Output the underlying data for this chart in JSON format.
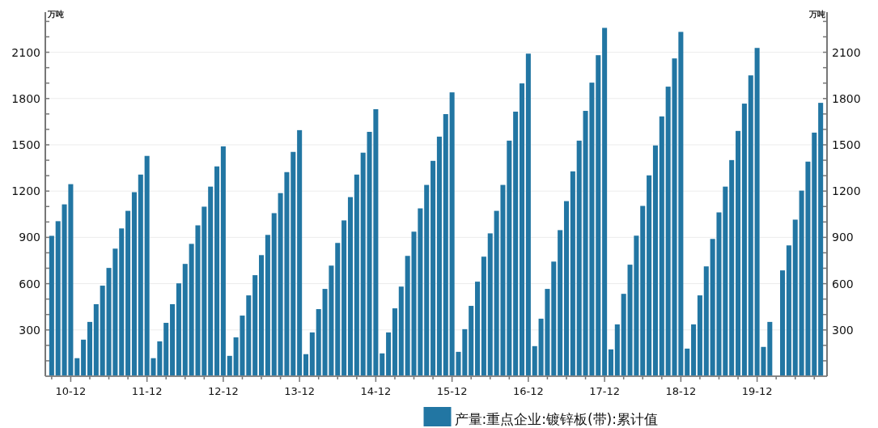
{
  "chart_data": {
    "type": "bar",
    "ylabel": "万吨",
    "y2label": "万吨",
    "categories": [
      null,
      null,
      null,
      "10-12",
      null,
      null,
      null,
      null,
      null,
      null,
      null,
      null,
      null,
      null,
      null,
      "11-12",
      null,
      null,
      null,
      null,
      null,
      null,
      null,
      null,
      null,
      null,
      null,
      "12-12",
      null,
      null,
      null,
      null,
      null,
      null,
      null,
      null,
      null,
      null,
      null,
      "13-12",
      null,
      null,
      null,
      null,
      null,
      null,
      null,
      null,
      null,
      null,
      null,
      "14-12",
      null,
      null,
      null,
      null,
      null,
      null,
      null,
      null,
      null,
      null,
      null,
      "15-12",
      null,
      null,
      null,
      null,
      null,
      null,
      null,
      null,
      null,
      null,
      null,
      "16-12",
      null,
      null,
      null,
      null,
      null,
      null,
      null,
      null,
      null,
      null,
      null,
      "17-12",
      null,
      null,
      null,
      null,
      null,
      null,
      null,
      null,
      null,
      null,
      null,
      "18-12",
      null,
      null,
      null,
      null,
      null,
      null,
      null,
      null,
      null,
      null,
      null,
      "19-12",
      null,
      null,
      null,
      null,
      null,
      null,
      null,
      null,
      null,
      null
    ],
    "series": [
      {
        "name": "产量:重点企业:镀锌板(带):累计值",
        "color": "#2276a3",
        "values": [
          910,
          1005,
          1114,
          1245,
          117,
          237,
          352,
          467,
          587,
          702,
          827,
          958,
          1072,
          1193,
          1307,
          1428,
          117,
          226,
          346,
          467,
          602,
          728,
          858,
          978,
          1099,
          1229,
          1360,
          1490,
          132,
          252,
          393,
          524,
          655,
          785,
          916,
          1057,
          1187,
          1323,
          1454,
          1595,
          143,
          284,
          435,
          566,
          717,
          864,
          1010,
          1161,
          1307,
          1449,
          1584,
          1731,
          148,
          284,
          440,
          581,
          780,
          937,
          1088,
          1240,
          1396,
          1553,
          1699,
          1840,
          158,
          305,
          456,
          613,
          775,
          926,
          1072,
          1240,
          1527,
          1715,
          1898,
          2091,
          195,
          373,
          566,
          743,
          947,
          1135,
          1328,
          1527,
          1720,
          1903,
          2081,
          2258,
          174,
          336,
          534,
          723,
          911,
          1104,
          1302,
          1496,
          1684,
          1877,
          2060,
          2232,
          179,
          336,
          524,
          712,
          890,
          1062,
          1229,
          1401,
          1590,
          1767,
          1950,
          2128,
          190,
          352,
          null,
          686,
          848,
          1015,
          1203,
          1391,
          1579,
          1772
        ]
      }
    ],
    "ylim": [
      0,
      2360
    ],
    "yticks": [
      {
        "value": 100,
        "label": null
      },
      {
        "value": 200,
        "label": null
      },
      300,
      {
        "value": 400,
        "label": null
      },
      {
        "value": 500,
        "label": null
      },
      600,
      {
        "value": 700,
        "label": null
      },
      {
        "value": 800,
        "label": null
      },
      900,
      {
        "value": 1000,
        "label": null
      },
      {
        "value": 1100,
        "label": null
      },
      1200,
      {
        "value": 1300,
        "label": null
      },
      {
        "value": 1400,
        "label": null
      },
      1500,
      {
        "value": 1600,
        "label": null
      },
      {
        "value": 1700,
        "label": null
      },
      1800,
      {
        "value": 1900,
        "label": null
      },
      {
        "value": 2000,
        "label": null
      },
      2100,
      {
        "value": 2200,
        "label": null
      },
      {
        "value": 2300,
        "label": null
      }
    ],
    "y2lim": [
      0,
      2360
    ],
    "y2ticks": [
      {
        "value": 100,
        "label": null
      },
      {
        "value": 200,
        "label": null
      },
      300,
      {
        "value": 400,
        "label": null
      },
      {
        "value": 500,
        "label": null
      },
      600,
      {
        "value": 700,
        "label": null
      },
      {
        "value": 800,
        "label": null
      },
      900,
      {
        "value": 1000,
        "label": null
      },
      {
        "value": 1100,
        "label": null
      },
      1200,
      {
        "value": 1300,
        "label": null
      },
      {
        "value": 1400,
        "label": null
      },
      1500,
      {
        "value": 1600,
        "label": null
      },
      {
        "value": 1700,
        "label": null
      },
      1800,
      {
        "value": 1900,
        "label": null
      },
      {
        "value": 2000,
        "label": null
      },
      2100,
      {
        "value": 2200,
        "label": null
      },
      {
        "value": 2300,
        "label": null
      }
    ],
    "grid": "y",
    "legend": "bottom"
  }
}
